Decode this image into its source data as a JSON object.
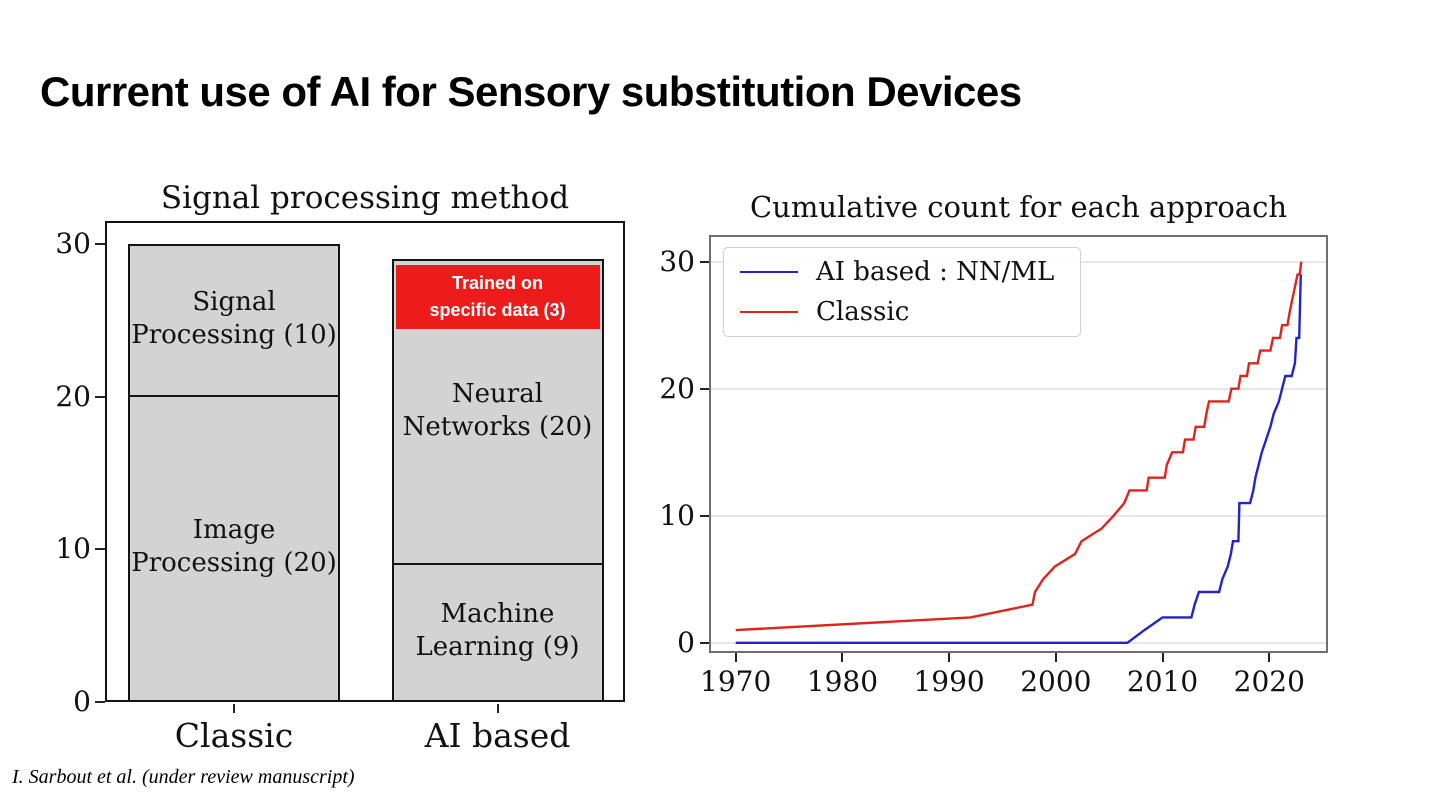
{
  "page": {
    "title": "Current use of AI for Sensory substitution Devices",
    "footer": "I. Sarbout et al. (under review manuscript)"
  },
  "colors": {
    "classic_red": "#e0241c",
    "ai_blue": "#2323c8",
    "annotation_red": "#ee1b1b",
    "annotation_text": "#ffffff",
    "bar_fill": "#d3d3d3",
    "bar_edge": "#141414",
    "axis_black": "#141414",
    "spine_gray": "#6e6e6e",
    "grid": "#e7e7e7"
  },
  "chart_data": [
    {
      "id": "methods_bar",
      "type": "bar",
      "title": "Signal processing method",
      "stacked": true,
      "categories": [
        "Classic",
        "AI based"
      ],
      "ylim": [
        0,
        31.5
      ],
      "yticks": [
        0,
        10,
        20,
        30
      ],
      "bars": [
        {
          "category": "Classic",
          "total": 30,
          "segments": [
            {
              "label": "Image Processing (20)",
              "label_lines": [
                "Image",
                "Processing (20)"
              ],
              "value": 20
            },
            {
              "label": "Signal Processing (10)",
              "label_lines": [
                "Signal",
                "Processing (10)"
              ],
              "value": 10
            }
          ]
        },
        {
          "category": "AI based",
          "total": 29,
          "segments": [
            {
              "label": "Machine Learning (9)",
              "label_lines": [
                "Machine",
                "Learning (9)"
              ],
              "value": 9
            },
            {
              "label": "Neural Networks (20)",
              "label_lines": [
                "Neural",
                "Networks (20)"
              ],
              "value": 20
            }
          ],
          "annotation": {
            "label": "Trained on specific data (3)",
            "lines": [
              "Trained on",
              "specific data (3)"
            ],
            "value": 3,
            "value_from": 24.4,
            "value_to": 28.6
          }
        }
      ]
    },
    {
      "id": "cumulative_line",
      "type": "line",
      "title": "Cumulative count for each approach",
      "xlim": [
        1967.5,
        2025.5
      ],
      "ylim": [
        -0.8,
        32.1
      ],
      "xticks": [
        1970,
        1980,
        1990,
        2000,
        2010,
        2020
      ],
      "yticks": [
        0,
        10,
        20,
        30
      ],
      "grid": "horizontal",
      "legend": {
        "position": "upper-left"
      },
      "series": [
        {
          "name": "AI based : NN/ML",
          "color_key": "ai_blue",
          "points": [
            [
              1970,
              0
            ],
            [
              2006.7,
              0
            ],
            [
              2008.3,
              1
            ],
            [
              2010,
              2
            ],
            [
              2012.7,
              2
            ],
            [
              2013,
              3
            ],
            [
              2013.4,
              4
            ],
            [
              2015.3,
              4
            ],
            [
              2015.6,
              5
            ],
            [
              2016.1,
              6
            ],
            [
              2016.4,
              7
            ],
            [
              2016.6,
              8
            ],
            [
              2017.1,
              8
            ],
            [
              2017.2,
              11
            ],
            [
              2018.2,
              11
            ],
            [
              2018.5,
              12
            ],
            [
              2018.7,
              13
            ],
            [
              2019,
              14
            ],
            [
              2019.3,
              15
            ],
            [
              2019.7,
              16
            ],
            [
              2020.1,
              17
            ],
            [
              2020.4,
              18
            ],
            [
              2020.9,
              19
            ],
            [
              2021.2,
              20
            ],
            [
              2021.5,
              21
            ],
            [
              2022.1,
              21
            ],
            [
              2022.4,
              22
            ],
            [
              2022.55,
              24
            ],
            [
              2022.8,
              24
            ],
            [
              2022.95,
              29
            ]
          ]
        },
        {
          "name": "Classic",
          "color_key": "classic_red",
          "points": [
            [
              1970,
              1
            ],
            [
              1992,
              2
            ],
            [
              1997.8,
              3
            ],
            [
              1998.05,
              4
            ],
            [
              1998.8,
              5
            ],
            [
              1999.9,
              6
            ],
            [
              2001.8,
              7
            ],
            [
              2002.4,
              8
            ],
            [
              2004.3,
              9
            ],
            [
              2005.4,
              10
            ],
            [
              2006.4,
              11
            ],
            [
              2006.9,
              12
            ],
            [
              2008.5,
              12
            ],
            [
              2008.7,
              13
            ],
            [
              2010.2,
              13
            ],
            [
              2010.4,
              14
            ],
            [
              2010.9,
              15
            ],
            [
              2011.9,
              15
            ],
            [
              2012.1,
              16
            ],
            [
              2012.9,
              16
            ],
            [
              2013.1,
              17
            ],
            [
              2013.9,
              17
            ],
            [
              2014.1,
              18
            ],
            [
              2014.35,
              19
            ],
            [
              2016.2,
              19
            ],
            [
              2016.45,
              20
            ],
            [
              2017.1,
              20
            ],
            [
              2017.3,
              21
            ],
            [
              2017.9,
              21
            ],
            [
              2018.1,
              22
            ],
            [
              2018.9,
              22
            ],
            [
              2019.15,
              23
            ],
            [
              2020.1,
              23
            ],
            [
              2020.35,
              24
            ],
            [
              2021,
              24
            ],
            [
              2021.2,
              25
            ],
            [
              2021.7,
              25
            ],
            [
              2021.9,
              26
            ],
            [
              2022.15,
              27
            ],
            [
              2022.4,
              28
            ],
            [
              2022.65,
              29
            ],
            [
              2022.85,
              29
            ],
            [
              2023,
              30
            ]
          ]
        }
      ]
    }
  ]
}
